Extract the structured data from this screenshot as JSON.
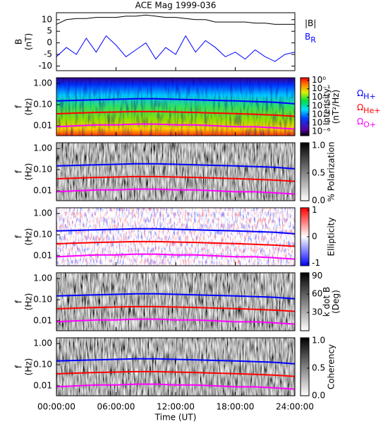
{
  "chart_data": [
    {
      "type": "line",
      "title": "ACE Mag 1999-036",
      "ylabel": [
        "B",
        "(nT)"
      ],
      "x": [
        0,
        1,
        2,
        3,
        4,
        5,
        6,
        7,
        8,
        9,
        10,
        11,
        12,
        13,
        14,
        15,
        16,
        17,
        18,
        19,
        20,
        21,
        22,
        23,
        24
      ],
      "ylim": [
        -12,
        13
      ],
      "yticks": [
        -10,
        -5,
        0,
        5,
        10
      ],
      "series": [
        {
          "name": "|B|",
          "color": "#000000",
          "values": [
            8,
            10,
            10.5,
            10.5,
            11,
            11,
            11,
            11.5,
            11.5,
            12,
            11.5,
            11,
            11,
            10.5,
            10,
            10,
            9,
            9,
            9,
            9,
            8.5,
            8.5,
            8,
            8,
            8
          ]
        },
        {
          "name": "B",
          "subscript": "R",
          "color": "#0000ff",
          "values": [
            -6,
            -2,
            -5,
            2,
            -4,
            3,
            -1,
            -6,
            -3,
            0,
            -7,
            -2,
            -5,
            3,
            -4,
            1,
            -2,
            -6,
            -4,
            -7,
            -3,
            -6,
            -8,
            -5,
            -4
          ]
        }
      ]
    },
    {
      "type": "spectrogram",
      "ylabel": [
        "f",
        "(Hz)"
      ],
      "colormap": "rainbow",
      "ylim": [
        0.0034,
        1.88
      ],
      "yticks": [
        {
          "value": 1,
          "label": "1.00"
        },
        {
          "value": 0.1,
          "label": "0.10"
        },
        {
          "value": 0.01,
          "label": "0.01"
        }
      ],
      "clabel": [
        "Intensity",
        "(nT²/Hz)"
      ],
      "clim": [
        -6.5,
        0.3
      ],
      "cticks": [
        {
          "value": 0,
          "label": "10⁰"
        },
        {
          "value": -1,
          "label": "10⁻¹"
        },
        {
          "value": -2,
          "label": "10⁻²"
        },
        {
          "value": -3,
          "label": "10⁻³"
        },
        {
          "value": -4,
          "label": "10⁻⁴"
        },
        {
          "value": -5,
          "label": "10⁻⁵"
        },
        {
          "value": -6,
          "label": "10⁻⁶"
        }
      ],
      "gyro": {
        "symbol": "Ω",
        "x": [
          0,
          2,
          4,
          6,
          8,
          10,
          12,
          14,
          16,
          18,
          20,
          22,
          24
        ],
        "series": [
          {
            "name": "H+",
            "color": "#0000ff",
            "values": [
              0.15,
              0.16,
              0.17,
              0.18,
              0.19,
              0.19,
              0.18,
              0.17,
              0.16,
              0.15,
              0.14,
              0.13,
              0.11
            ]
          },
          {
            "name": "He+",
            "color": "#ff0000",
            "values": [
              0.037,
              0.04,
              0.043,
              0.045,
              0.047,
              0.047,
              0.045,
              0.043,
              0.04,
              0.038,
              0.035,
              0.032,
              0.028
            ]
          },
          {
            "name": "O+",
            "color": "#ff00ff",
            "values": [
              0.009,
              0.01,
              0.011,
              0.011,
              0.012,
              0.012,
              0.011,
              0.011,
              0.01,
              0.009,
              0.009,
              0.008,
              0.007
            ]
          }
        ]
      }
    },
    {
      "type": "spectrogram",
      "ylabel": [
        "f",
        "(Hz)"
      ],
      "colormap": "gray",
      "ylim": [
        0.0034,
        1.88
      ],
      "yticks": [
        {
          "value": 1,
          "label": "1.00"
        },
        {
          "value": 0.1,
          "label": "0.10"
        },
        {
          "value": 0.01,
          "label": "0.01"
        }
      ],
      "clabel": [
        "% Polarization"
      ],
      "clim": [
        0,
        1.05
      ],
      "cticks": [
        {
          "value": 0,
          "label": "0.0"
        },
        {
          "value": 0.5,
          "label": "0.5"
        },
        {
          "value": 1,
          "label": "1.0"
        }
      ]
    },
    {
      "type": "spectrogram",
      "ylabel": [
        "f",
        "(Hz)"
      ],
      "colormap": "redblue",
      "ylim": [
        0.0034,
        1.88
      ],
      "yticks": [
        {
          "value": 1,
          "label": "1.00"
        },
        {
          "value": 0.1,
          "label": "0.10"
        },
        {
          "value": 0.01,
          "label": "0.01"
        }
      ],
      "clabel": [
        "Ellipticity"
      ],
      "clim": [
        -1.1,
        1.1
      ],
      "cticks": [
        -1,
        0,
        1
      ]
    },
    {
      "type": "spectrogram",
      "ylabel": [
        "f",
        "(Hz)"
      ],
      "colormap": "gray",
      "ylim": [
        0.0034,
        1.88
      ],
      "yticks": [
        {
          "value": 1,
          "label": "1.00"
        },
        {
          "value": 0.1,
          "label": "0.10"
        },
        {
          "value": 0.01,
          "label": "0.01"
        }
      ],
      "clabel": [
        "k dot B",
        "(Deg)"
      ],
      "clim": [
        0,
        95
      ],
      "cticks": [
        30,
        60,
        90
      ]
    },
    {
      "type": "spectrogram",
      "ylabel": [
        "f",
        "(Hz)"
      ],
      "colormap": "gray",
      "ylim": [
        0.0034,
        1.88
      ],
      "yticks": [
        {
          "value": 1,
          "label": "1.00"
        },
        {
          "value": 0.1,
          "label": "0.10"
        },
        {
          "value": 0.01,
          "label": "0.01"
        }
      ],
      "clabel": [
        "Coherency"
      ],
      "clim": [
        0,
        1.05
      ],
      "cticks": [
        {
          "value": 0,
          "label": "0.0"
        },
        {
          "value": 0.5,
          "label": "0.5"
        },
        {
          "value": 1,
          "label": "1.0"
        }
      ],
      "xlabel": "Time (UT)",
      "xlim": [
        0,
        24
      ],
      "xticks": [
        {
          "value": 0,
          "label": "00:00:00"
        },
        {
          "value": 6,
          "label": "06:00:00"
        },
        {
          "value": 12,
          "label": "12:00:00"
        },
        {
          "value": 18,
          "label": "18:00:00"
        },
        {
          "value": 24,
          "label": "24:00:00"
        }
      ]
    }
  ]
}
